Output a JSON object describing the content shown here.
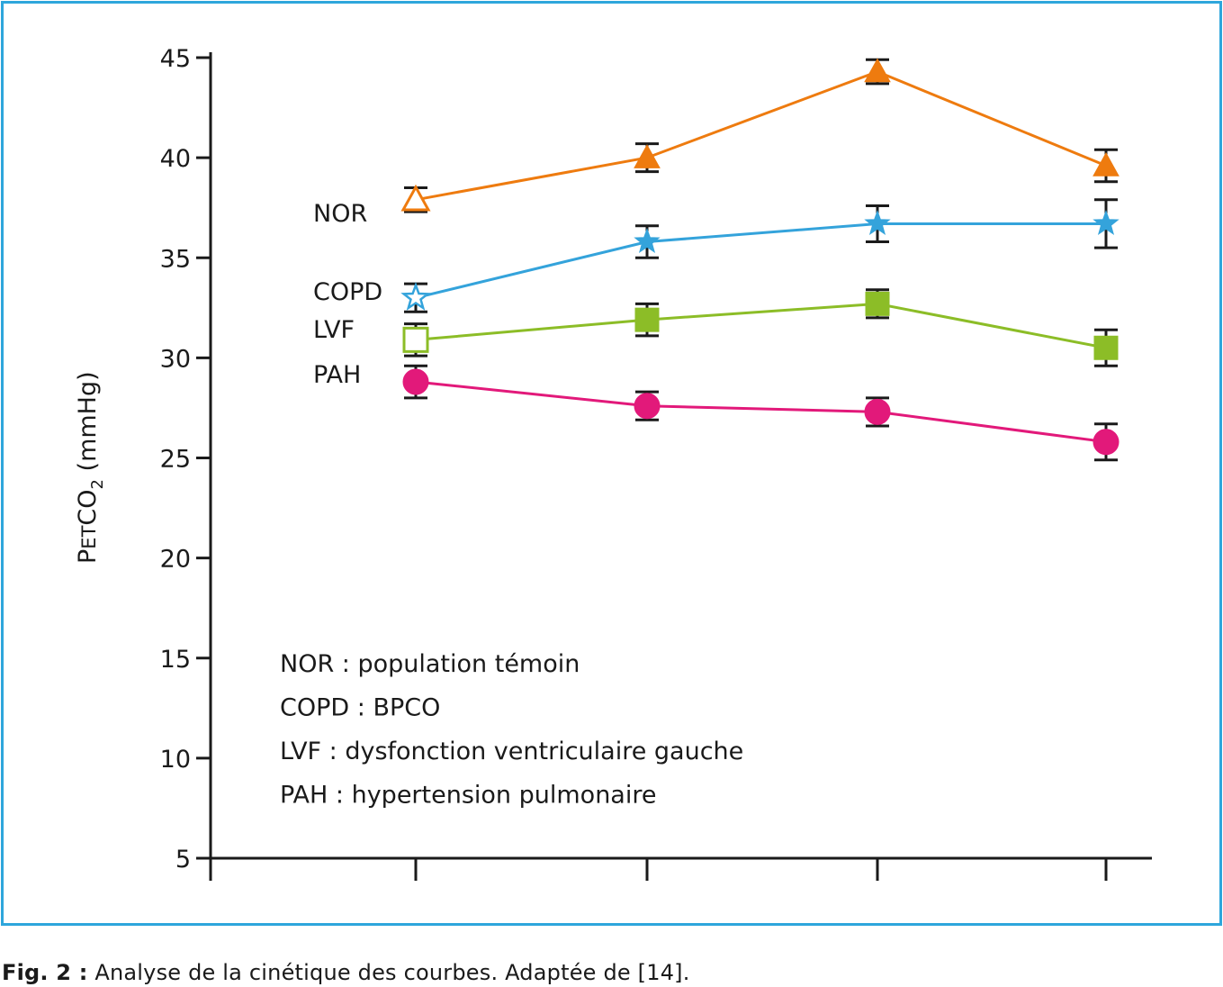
{
  "chart_data": {
    "type": "line",
    "ylabel": {
      "main": "PETCO",
      "subscript": "2",
      "unit": "(mmHg)"
    },
    "xlabel": "",
    "ylim": [
      5,
      45
    ],
    "yticks": [
      45,
      40,
      35,
      30,
      25,
      20,
      15,
      10,
      5
    ],
    "x": [
      1,
      2,
      3,
      4
    ],
    "grid": false,
    "series": [
      {
        "name": "NOR",
        "color": "#ee7b0f",
        "marker": "triangle",
        "first_marker_hollow": true,
        "values": [
          37.9,
          40.0,
          44.3,
          39.6
        ],
        "errors": [
          0.6,
          0.7,
          0.6,
          0.8
        ]
      },
      {
        "name": "COPD",
        "color": "#34a3db",
        "marker": "star",
        "first_marker_hollow": true,
        "values": [
          33.0,
          35.8,
          36.7,
          36.7
        ],
        "errors": [
          0.7,
          0.8,
          0.9,
          1.2
        ]
      },
      {
        "name": "LVF",
        "color": "#8cbd27",
        "marker": "square",
        "first_marker_hollow": true,
        "values": [
          30.9,
          31.9,
          32.7,
          30.5
        ],
        "errors": [
          0.8,
          0.8,
          0.7,
          0.9
        ]
      },
      {
        "name": "PAH",
        "color": "#e2197a",
        "marker": "circle",
        "first_marker_hollow": false,
        "values": [
          28.8,
          27.6,
          27.3,
          25.8
        ],
        "errors": [
          0.8,
          0.7,
          0.7,
          0.9
        ]
      }
    ],
    "legend_notes": [
      "NOR : population témoin",
      "COPD : BPCO",
      "LVF : dysfonction ventriculaire gauche",
      "PAH : hypertension pulmonaire"
    ]
  },
  "caption": {
    "label": "Fig. 2 :",
    "text": " Analyse de la cinétique des courbes. Adaptée de [14]."
  },
  "colors": {
    "frame": "#2ea6dc",
    "axis": "#1a1a1a"
  }
}
